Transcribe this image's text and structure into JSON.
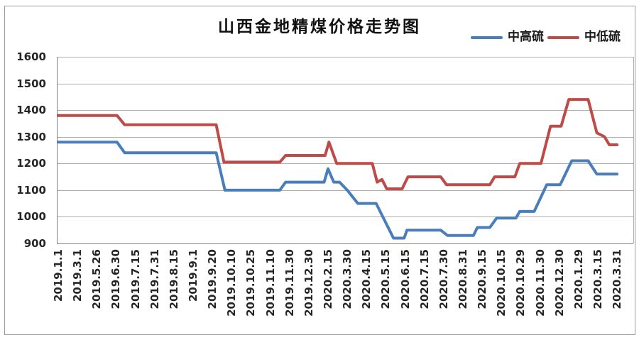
{
  "chart_data": {
    "type": "line",
    "title": "山西金地精煤价格走势图",
    "xlabel": "",
    "ylabel": "",
    "ylim": [
      900,
      1600
    ],
    "ytick_step": 100,
    "yticks": [
      900,
      1000,
      1100,
      1200,
      1300,
      1400,
      1500,
      1600
    ],
    "grid": "horizontal",
    "legend_position": "top-right",
    "categories": [
      "2019.1.1",
      "2019.3.1",
      "2019.5.26",
      "2019.6.30",
      "2019.7.15",
      "2019.7.31",
      "2019.8.15",
      "2019.9.1",
      "2019.9.20",
      "2019.10.10",
      "2019.10.25",
      "2019.11.10",
      "2019.11.30",
      "2019.12.30",
      "2020.2.15",
      "2020.3.30",
      "2020.4.15",
      "2020.5.15",
      "2020.6.15",
      "2020.7.15",
      "2020.7.30",
      "2020.8.31",
      "2020.9.15",
      "2020.10.15",
      "2020.10.29",
      "2020.11.30",
      "2020.12.30",
      "2020.1.29",
      "2020.3.15",
      "2020.3.31"
    ],
    "points_x_unit": "category_index",
    "series": [
      {
        "name": "中高硫",
        "slug": "medium-high-sulfur",
        "color": "#4A7EBB",
        "values_at_ticks": [
          1280,
          1280,
          1280,
          1280,
          1240,
          1240,
          1240,
          1240,
          1240,
          1100,
          1100,
          1100,
          1130,
          1130,
          1180,
          1100,
          1050,
          975,
          950,
          950,
          935,
          930,
          960,
          995,
          1020,
          1060,
          1120,
          1210,
          1160,
          1160
        ],
        "points": [
          [
            0,
            1280
          ],
          [
            3.05,
            1280
          ],
          [
            3.45,
            1240
          ],
          [
            8.2,
            1240
          ],
          [
            8.65,
            1100
          ],
          [
            11.5,
            1100
          ],
          [
            11.8,
            1130
          ],
          [
            13.8,
            1130
          ],
          [
            14.0,
            1180
          ],
          [
            14.3,
            1130
          ],
          [
            14.6,
            1130
          ],
          [
            15.0,
            1100
          ],
          [
            15.55,
            1050
          ],
          [
            16.5,
            1050
          ],
          [
            17.4,
            920
          ],
          [
            17.95,
            920
          ],
          [
            18.1,
            950
          ],
          [
            19.85,
            950
          ],
          [
            20.2,
            930
          ],
          [
            21.55,
            930
          ],
          [
            21.75,
            960
          ],
          [
            22.4,
            960
          ],
          [
            22.75,
            995
          ],
          [
            23.75,
            995
          ],
          [
            23.95,
            1020
          ],
          [
            24.7,
            1020
          ],
          [
            25.35,
            1120
          ],
          [
            26.05,
            1120
          ],
          [
            26.65,
            1210
          ],
          [
            27.5,
            1210
          ],
          [
            27.95,
            1160
          ],
          [
            29,
            1160
          ]
        ]
      },
      {
        "name": "中低硫",
        "slug": "medium-low-sulfur",
        "color": "#BE4B48",
        "values_at_ticks": [
          1380,
          1380,
          1380,
          1380,
          1345,
          1345,
          1345,
          1345,
          1345,
          1205,
          1205,
          1205,
          1230,
          1230,
          1280,
          1200,
          1200,
          1110,
          1150,
          1150,
          1120,
          1120,
          1120,
          1150,
          1200,
          1200,
          1340,
          1440,
          1310,
          1270
        ],
        "points": [
          [
            0,
            1380
          ],
          [
            3.05,
            1380
          ],
          [
            3.45,
            1345
          ],
          [
            8.2,
            1345
          ],
          [
            8.6,
            1205
          ],
          [
            11.5,
            1205
          ],
          [
            11.8,
            1230
          ],
          [
            13.85,
            1230
          ],
          [
            14.05,
            1280
          ],
          [
            14.45,
            1200
          ],
          [
            16.3,
            1200
          ],
          [
            16.55,
            1130
          ],
          [
            16.8,
            1140
          ],
          [
            17.05,
            1105
          ],
          [
            17.85,
            1105
          ],
          [
            18.15,
            1150
          ],
          [
            19.85,
            1150
          ],
          [
            20.15,
            1120
          ],
          [
            22.4,
            1120
          ],
          [
            22.65,
            1150
          ],
          [
            23.7,
            1150
          ],
          [
            23.95,
            1200
          ],
          [
            25.05,
            1200
          ],
          [
            25.55,
            1340
          ],
          [
            26.1,
            1340
          ],
          [
            26.5,
            1440
          ],
          [
            27.5,
            1440
          ],
          [
            27.95,
            1315
          ],
          [
            28.35,
            1300
          ],
          [
            28.6,
            1270
          ],
          [
            29,
            1270
          ]
        ]
      }
    ]
  }
}
